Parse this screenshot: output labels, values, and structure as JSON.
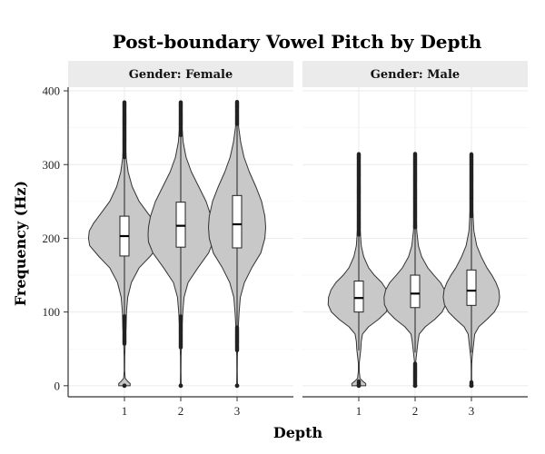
{
  "chart_data": {
    "type": "violin",
    "title": "Post-boundary Vowel Pitch by Depth",
    "xlabel": "Depth",
    "ylabel": "Frequency (Hz)",
    "ylim": [
      -15,
      405
    ],
    "yticks": [
      0,
      100,
      200,
      300,
      400
    ],
    "categories": [
      "1",
      "2",
      "3"
    ],
    "colors": {
      "violin_fill": "#c8c8c8",
      "violin_stroke": "#333333",
      "box_fill": "#ffffff",
      "grid": "#ebebeb",
      "strip": "#ebebeb",
      "outlier": "#222222"
    },
    "panels": [
      {
        "strip": "Gender: Female",
        "groups": [
          {
            "depth": "1",
            "box": {
              "q1": 176,
              "median": 203,
              "q3": 230
            },
            "whisker_low": 95,
            "whisker_high": 310,
            "outliers_low_range": [
              57,
              95
            ],
            "outliers_high_range": [
              310,
              385
            ],
            "density": [
              [
                0,
                0.14
              ],
              [
                3,
                0.14
              ],
              [
                6,
                0.08
              ],
              [
                10,
                0.02
              ],
              [
                20,
                0.006
              ],
              [
                40,
                0.008
              ],
              [
                60,
                0.02
              ],
              [
                80,
                0.04
              ],
              [
                100,
                0.05
              ],
              [
                120,
                0.08
              ],
              [
                140,
                0.17
              ],
              [
                160,
                0.36
              ],
              [
                175,
                0.62
              ],
              [
                190,
                0.85
              ],
              [
                200,
                0.88
              ],
              [
                210,
                0.86
              ],
              [
                220,
                0.76
              ],
              [
                235,
                0.56
              ],
              [
                250,
                0.36
              ],
              [
                270,
                0.19
              ],
              [
                290,
                0.09
              ],
              [
                310,
                0.04
              ],
              [
                330,
                0.02
              ],
              [
                350,
                0.012
              ],
              [
                370,
                0.008
              ],
              [
                385,
                0
              ]
            ]
          },
          {
            "depth": "2",
            "box": {
              "q1": 188,
              "median": 217,
              "q3": 249
            },
            "whisker_low": 95,
            "whisker_high": 340,
            "outliers_low_range": [
              52,
              95
            ],
            "outliers_high_range": [
              340,
              385
            ],
            "density": [
              [
                0,
                0.01
              ],
              [
                20,
                0.006
              ],
              [
                40,
                0.008
              ],
              [
                60,
                0.02
              ],
              [
                80,
                0.03
              ],
              [
                100,
                0.05
              ],
              [
                120,
                0.08
              ],
              [
                140,
                0.18
              ],
              [
                160,
                0.42
              ],
              [
                180,
                0.68
              ],
              [
                195,
                0.79
              ],
              [
                205,
                0.8
              ],
              [
                215,
                0.79
              ],
              [
                230,
                0.74
              ],
              [
                250,
                0.62
              ],
              [
                270,
                0.44
              ],
              [
                290,
                0.26
              ],
              [
                310,
                0.13
              ],
              [
                330,
                0.06
              ],
              [
                350,
                0.03
              ],
              [
                370,
                0.015
              ],
              [
                385,
                0
              ]
            ]
          },
          {
            "depth": "3",
            "box": {
              "q1": 187,
              "median": 219,
              "q3": 258
            },
            "whisker_low": 80,
            "whisker_high": 355,
            "outliers_low_range": [
              48,
              80
            ],
            "outliers_high_range": [
              355,
              385
            ],
            "density": [
              [
                0,
                0.01
              ],
              [
                20,
                0.006
              ],
              [
                40,
                0.008
              ],
              [
                60,
                0.02
              ],
              [
                80,
                0.03
              ],
              [
                100,
                0.05
              ],
              [
                120,
                0.08
              ],
              [
                140,
                0.18
              ],
              [
                160,
                0.36
              ],
              [
                180,
                0.58
              ],
              [
                200,
                0.68
              ],
              [
                215,
                0.7
              ],
              [
                230,
                0.68
              ],
              [
                250,
                0.6
              ],
              [
                270,
                0.46
              ],
              [
                290,
                0.3
              ],
              [
                310,
                0.17
              ],
              [
                330,
                0.09
              ],
              [
                350,
                0.04
              ],
              [
                370,
                0.02
              ],
              [
                385,
                0
              ]
            ]
          }
        ]
      },
      {
        "strip": "Gender: Male",
        "groups": [
          {
            "depth": "1",
            "box": {
              "q1": 100,
              "median": 119,
              "q3": 142
            },
            "whisker_low": 48,
            "whisker_high": 205,
            "outliers_low_range": [
              0,
              6
            ],
            "outliers_high_range": [
              205,
              315
            ],
            "density": [
              [
                0,
                0.17
              ],
              [
                3,
                0.17
              ],
              [
                6,
                0.1
              ],
              [
                10,
                0.03
              ],
              [
                20,
                0.01
              ],
              [
                30,
                0.01
              ],
              [
                40,
                0.03
              ],
              [
                50,
                0.05
              ],
              [
                60,
                0.06
              ],
              [
                70,
                0.09
              ],
              [
                80,
                0.24
              ],
              [
                90,
                0.48
              ],
              [
                100,
                0.67
              ],
              [
                110,
                0.75
              ],
              [
                120,
                0.74
              ],
              [
                130,
                0.68
              ],
              [
                140,
                0.56
              ],
              [
                150,
                0.38
              ],
              [
                160,
                0.24
              ],
              [
                175,
                0.12
              ],
              [
                190,
                0.06
              ],
              [
                210,
                0.035
              ],
              [
                240,
                0.02
              ],
              [
                270,
                0.012
              ],
              [
                300,
                0.007
              ],
              [
                315,
                0
              ]
            ]
          },
          {
            "depth": "2",
            "box": {
              "q1": 106,
              "median": 125,
              "q3": 150
            },
            "whisker_low": 45,
            "whisker_high": 215,
            "outliers_low_range": [
              0,
              30
            ],
            "outliers_high_range": [
              215,
              315
            ],
            "density": [
              [
                0,
                0.01
              ],
              [
                10,
                0.007
              ],
              [
                20,
                0.007
              ],
              [
                30,
                0.01
              ],
              [
                40,
                0.03
              ],
              [
                50,
                0.05
              ],
              [
                60,
                0.07
              ],
              [
                70,
                0.1
              ],
              [
                80,
                0.25
              ],
              [
                90,
                0.48
              ],
              [
                100,
                0.66
              ],
              [
                110,
                0.75
              ],
              [
                120,
                0.76
              ],
              [
                130,
                0.72
              ],
              [
                140,
                0.62
              ],
              [
                150,
                0.46
              ],
              [
                160,
                0.31
              ],
              [
                175,
                0.16
              ],
              [
                190,
                0.08
              ],
              [
                210,
                0.04
              ],
              [
                240,
                0.022
              ],
              [
                270,
                0.013
              ],
              [
                300,
                0.008
              ],
              [
                315,
                0
              ]
            ]
          },
          {
            "depth": "3",
            "box": {
              "q1": 109,
              "median": 129,
              "q3": 157
            },
            "whisker_low": 45,
            "whisker_high": 230,
            "outliers_low_range": [
              0,
              5
            ],
            "outliers_high_range": [
              230,
              315
            ],
            "density": [
              [
                0,
                0.01
              ],
              [
                10,
                0.006
              ],
              [
                20,
                0.006
              ],
              [
                30,
                0.008
              ],
              [
                40,
                0.02
              ],
              [
                50,
                0.04
              ],
              [
                60,
                0.06
              ],
              [
                70,
                0.08
              ],
              [
                80,
                0.18
              ],
              [
                90,
                0.38
              ],
              [
                100,
                0.56
              ],
              [
                110,
                0.66
              ],
              [
                120,
                0.69
              ],
              [
                130,
                0.67
              ],
              [
                140,
                0.6
              ],
              [
                150,
                0.5
              ],
              [
                160,
                0.38
              ],
              [
                175,
                0.24
              ],
              [
                190,
                0.13
              ],
              [
                210,
                0.06
              ],
              [
                240,
                0.03
              ],
              [
                270,
                0.016
              ],
              [
                300,
                0.009
              ],
              [
                315,
                0
              ]
            ]
          }
        ]
      }
    ]
  }
}
